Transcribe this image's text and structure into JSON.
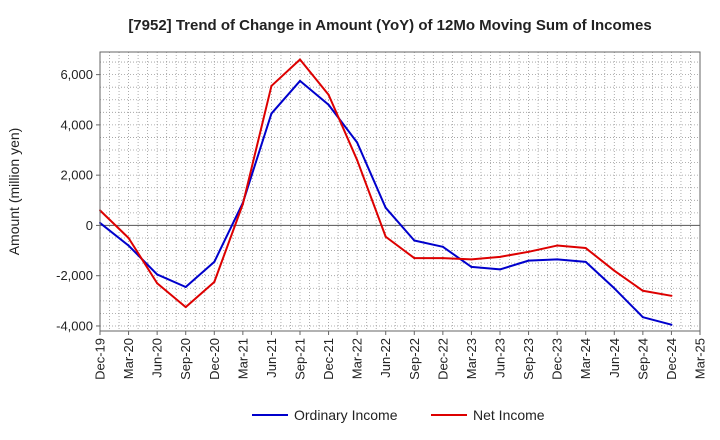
{
  "chart_data": {
    "type": "line",
    "title": "[7952]  Trend of Change in Amount (YoY) of 12Mo Moving Sum of Incomes",
    "xlabel": "",
    "ylabel": "Amount (million yen)",
    "ylim": [
      -4200,
      6900
    ],
    "yticks": [
      -4000,
      -2000,
      0,
      2000,
      4000,
      6000
    ],
    "ytick_labels": [
      "-4,000",
      "-2,000",
      "0",
      "2,000",
      "4,000",
      "6,000"
    ],
    "categories": [
      "Dec-19",
      "Mar-20",
      "Jun-20",
      "Sep-20",
      "Dec-20",
      "Mar-21",
      "Jun-21",
      "Sep-21",
      "Dec-21",
      "Mar-22",
      "Jun-22",
      "Sep-22",
      "Dec-22",
      "Mar-23",
      "Jun-23",
      "Sep-23",
      "Dec-23",
      "Mar-24",
      "Jun-24",
      "Sep-24",
      "Dec-24",
      "Mar-25"
    ],
    "grid": true,
    "legend_position": "bottom-center",
    "series": [
      {
        "name": "Ordinary Income",
        "color": "#0000cc",
        "values": [
          100,
          -800,
          -1950,
          -2450,
          -1450,
          900,
          4450,
          5750,
          4800,
          3300,
          700,
          -600,
          -850,
          -1650,
          -1750,
          -1400,
          -1350,
          -1450,
          -2500,
          -3650,
          -3950,
          null
        ]
      },
      {
        "name": "Net Income",
        "color": "#dd0000",
        "values": [
          600,
          -500,
          -2300,
          -3250,
          -2250,
          850,
          5550,
          6600,
          5200,
          2600,
          -450,
          -1300,
          -1300,
          -1350,
          -1250,
          -1050,
          -800,
          -900,
          -1800,
          -2600,
          -2800,
          null
        ]
      }
    ]
  }
}
